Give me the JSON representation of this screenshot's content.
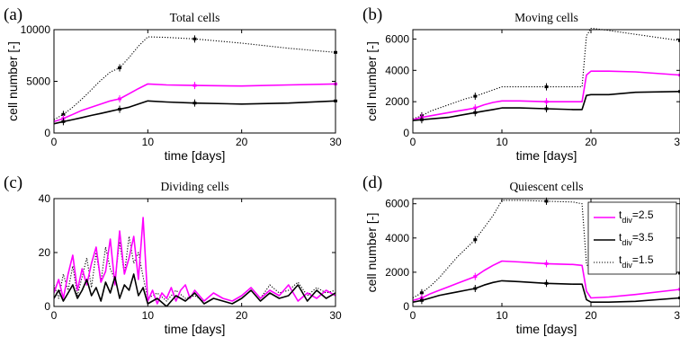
{
  "chart_data": [
    {
      "panel": "(a)",
      "type": "line",
      "title": "Total cells",
      "xlabel": "time [days]",
      "ylabel": "cell number [-]",
      "xlim": [
        0,
        30
      ],
      "ylim": [
        0,
        10000
      ],
      "xticks": [
        "0",
        "10",
        "20",
        "30"
      ],
      "yticks": [
        "0",
        "5000",
        "10000"
      ],
      "grid": false,
      "series": [
        {
          "color": "#000000",
          "dash": "dotted",
          "x": [
            0,
            1,
            2,
            3,
            4,
            5,
            6,
            7,
            8,
            9,
            10,
            12,
            15,
            20,
            25,
            30
          ],
          "y": [
            1300,
            1800,
            2500,
            3300,
            4200,
            5100,
            5900,
            6300,
            7300,
            8400,
            9300,
            9250,
            9100,
            8700,
            8200,
            7800
          ],
          "markers": [
            [
              1,
              1800
            ],
            [
              7,
              6300
            ],
            [
              15,
              9100
            ],
            [
              30,
              7800
            ]
          ]
        },
        {
          "color": "#ff00ff",
          "dash": "solid",
          "x": [
            0,
            1,
            2,
            3,
            4,
            5,
            6,
            7,
            8,
            9,
            10,
            12,
            15,
            20,
            25,
            30
          ],
          "y": [
            1100,
            1400,
            1800,
            2200,
            2500,
            2800,
            3100,
            3300,
            3800,
            4300,
            4750,
            4650,
            4600,
            4550,
            4650,
            4750
          ],
          "markers": [
            [
              1,
              1400
            ],
            [
              7,
              3300
            ],
            [
              15,
              4600
            ],
            [
              30,
              4750
            ]
          ]
        },
        {
          "color": "#000000",
          "dash": "solid",
          "x": [
            0,
            1,
            2,
            3,
            4,
            5,
            6,
            7,
            8,
            9,
            10,
            12,
            15,
            20,
            25,
            30
          ],
          "y": [
            900,
            1100,
            1300,
            1500,
            1700,
            1900,
            2100,
            2300,
            2500,
            2800,
            3100,
            3000,
            2900,
            2800,
            2900,
            3100
          ],
          "markers": [
            [
              1,
              1100
            ],
            [
              7,
              2300
            ],
            [
              15,
              2900
            ],
            [
              30,
              3100
            ]
          ]
        }
      ]
    },
    {
      "panel": "(b)",
      "type": "line",
      "title": "Moving cells",
      "xlabel": "time [days]",
      "ylabel": "cell number [-]",
      "xlim": [
        0,
        30
      ],
      "ylim": [
        0,
        6600
      ],
      "xticks": [
        "0",
        "10",
        "20",
        "30"
      ],
      "yticks": [
        "0",
        "2000",
        "4000",
        "6000"
      ],
      "grid": false,
      "series": [
        {
          "color": "#000000",
          "dash": "dotted",
          "x": [
            0,
            1,
            2,
            3,
            4,
            5,
            6,
            7,
            8,
            9,
            10,
            12,
            15,
            18,
            19,
            19.5,
            20,
            22,
            25,
            30
          ],
          "y": [
            900,
            1100,
            1400,
            1600,
            1800,
            2000,
            2200,
            2350,
            2550,
            2750,
            2950,
            2950,
            2950,
            2950,
            2950,
            6200,
            6700,
            6550,
            6300,
            5900
          ],
          "markers": [
            [
              1,
              1100
            ],
            [
              7,
              2350
            ],
            [
              15,
              2950
            ],
            [
              30,
              5900
            ]
          ]
        },
        {
          "color": "#ff00ff",
          "dash": "solid",
          "x": [
            0,
            1,
            2,
            3,
            4,
            5,
            6,
            7,
            8,
            9,
            10,
            12,
            15,
            18,
            19,
            19.5,
            20,
            22,
            25,
            30
          ],
          "y": [
            850,
            1000,
            1100,
            1200,
            1300,
            1400,
            1500,
            1600,
            1800,
            1950,
            2050,
            2050,
            2000,
            2000,
            2000,
            3700,
            3950,
            3950,
            3900,
            3700
          ],
          "markers": [
            [
              1,
              1000
            ],
            [
              7,
              1600
            ],
            [
              15,
              2000
            ],
            [
              30,
              3700
            ]
          ]
        },
        {
          "color": "#000000",
          "dash": "solid",
          "x": [
            0,
            1,
            2,
            3,
            4,
            5,
            6,
            7,
            8,
            9,
            10,
            12,
            15,
            18,
            19,
            19.5,
            20,
            22,
            25,
            30
          ],
          "y": [
            800,
            850,
            900,
            950,
            1000,
            1100,
            1200,
            1300,
            1400,
            1500,
            1600,
            1600,
            1550,
            1500,
            1500,
            2400,
            2450,
            2450,
            2600,
            2650
          ],
          "markers": [
            [
              1,
              850
            ],
            [
              7,
              1300
            ],
            [
              15,
              1550
            ],
            [
              30,
              2650
            ]
          ]
        }
      ]
    },
    {
      "panel": "(c)",
      "type": "line",
      "title": "Dividing cells",
      "xlabel": "time [days]",
      "ylabel": "",
      "xlim": [
        0,
        30
      ],
      "ylim": [
        0,
        40
      ],
      "xticks": [
        "0",
        "10",
        "20",
        "30"
      ],
      "yticks": [
        "0",
        "20",
        "40"
      ],
      "grid": false,
      "series": [
        {
          "color": "#000000",
          "dash": "dotted",
          "x": [
            0,
            0.5,
            1,
            1.5,
            2,
            2.5,
            3,
            3.5,
            4,
            4.5,
            5,
            5.5,
            6,
            6.5,
            7,
            7.5,
            8,
            8.5,
            9,
            9.5,
            10,
            11,
            12,
            13,
            14,
            15,
            16,
            17,
            18,
            19,
            20,
            21,
            22,
            23,
            24,
            25,
            26,
            27,
            28,
            29,
            30
          ],
          "y": [
            8,
            3,
            12,
            6,
            15,
            4,
            11,
            18,
            7,
            20,
            9,
            22,
            14,
            10,
            24,
            12,
            26,
            16,
            20,
            11,
            3,
            5,
            2,
            6,
            3,
            4,
            2,
            5,
            3,
            2,
            4,
            7,
            3,
            8,
            5,
            6,
            9,
            4,
            7,
            5,
            6
          ]
        },
        {
          "color": "#ff00ff",
          "dash": "solid",
          "x": [
            0,
            0.5,
            1,
            1.5,
            2,
            2.5,
            3,
            3.5,
            4,
            4.5,
            5,
            5.5,
            6,
            6.5,
            7,
            7.5,
            8,
            8.5,
            9,
            9.5,
            10,
            10.5,
            11,
            11.5,
            12,
            12.5,
            13,
            13.5,
            14,
            14.5,
            15,
            16,
            17,
            18,
            19,
            20,
            21,
            22,
            23,
            24,
            25,
            26,
            27,
            28,
            29,
            30
          ],
          "y": [
            5,
            10,
            3,
            12,
            19,
            6,
            14,
            8,
            16,
            22,
            9,
            13,
            25,
            8,
            28,
            12,
            18,
            26,
            10,
            33,
            2,
            6,
            1,
            5,
            3,
            7,
            2,
            6,
            8,
            3,
            6,
            2,
            5,
            3,
            2,
            4,
            7,
            3,
            6,
            4,
            8,
            2,
            5,
            3,
            6,
            4
          ]
        },
        {
          "color": "#000000",
          "dash": "solid",
          "x": [
            0,
            0.5,
            1,
            1.5,
            2,
            2.5,
            3,
            3.5,
            4,
            4.5,
            5,
            5.5,
            6,
            6.5,
            7,
            7.5,
            8,
            8.5,
            9,
            9.5,
            10,
            11,
            12,
            13,
            14,
            15,
            16,
            17,
            18,
            19,
            20,
            21,
            22,
            23,
            24,
            25,
            26,
            27,
            28,
            29,
            30
          ],
          "y": [
            3,
            6,
            2,
            5,
            8,
            3,
            6,
            10,
            4,
            7,
            2,
            9,
            5,
            11,
            3,
            8,
            6,
            12,
            4,
            7,
            1,
            3,
            0,
            4,
            2,
            5,
            1,
            3,
            2,
            1,
            3,
            6,
            2,
            5,
            3,
            4,
            8,
            2,
            6,
            3,
            5
          ]
        }
      ]
    },
    {
      "panel": "(d)",
      "type": "line",
      "title": "Quiescent cells",
      "xlabel": "time [days]",
      "ylabel": "cell number [-]",
      "xlim": [
        0,
        30
      ],
      "ylim": [
        0,
        6300
      ],
      "xticks": [
        "0",
        "10",
        "20",
        "30"
      ],
      "yticks": [
        "0",
        "2000",
        "4000",
        "6000"
      ],
      "grid": false,
      "legend": {
        "placement": "top-right",
        "entries": [
          {
            "main": "t",
            "sub": "div",
            "value": "=2.5",
            "color": "#ff00ff",
            "dash": "solid"
          },
          {
            "main": "t",
            "sub": "div",
            "value": "=3.5",
            "color": "#000000",
            "dash": "solid"
          },
          {
            "main": "t",
            "sub": "div",
            "value": "=1.5",
            "color": "#000000",
            "dash": "dotted"
          }
        ]
      },
      "series": [
        {
          "color": "#000000",
          "dash": "dotted",
          "x": [
            0,
            1,
            2,
            3,
            4,
            5,
            6,
            7,
            8,
            9,
            10,
            12,
            15,
            18,
            19,
            19.5,
            20,
            22,
            25,
            30
          ],
          "y": [
            500,
            800,
            1200,
            1700,
            2300,
            2900,
            3400,
            3900,
            4600,
            5300,
            6200,
            6200,
            6150,
            6100,
            6000,
            2500,
            1950,
            1950,
            1950,
            1950
          ],
          "markers": [
            [
              1,
              800
            ],
            [
              7,
              3900
            ],
            [
              15,
              6150
            ],
            [
              30,
              1950
            ]
          ]
        },
        {
          "color": "#ff00ff",
          "dash": "solid",
          "x": [
            0,
            1,
            2,
            3,
            4,
            5,
            6,
            7,
            8,
            9,
            10,
            12,
            15,
            18,
            19,
            19.5,
            20,
            22,
            25,
            30
          ],
          "y": [
            350,
            500,
            750,
            950,
            1150,
            1350,
            1550,
            1750,
            2100,
            2400,
            2650,
            2600,
            2500,
            2450,
            2400,
            900,
            500,
            550,
            700,
            1000
          ],
          "markers": [
            [
              1,
              500
            ],
            [
              7,
              1750
            ],
            [
              15,
              2500
            ],
            [
              30,
              1000
            ]
          ]
        },
        {
          "color": "#000000",
          "dash": "solid",
          "x": [
            0,
            1,
            2,
            3,
            4,
            5,
            6,
            7,
            8,
            9,
            10,
            12,
            15,
            18,
            19,
            19.5,
            20,
            22,
            25,
            30
          ],
          "y": [
            250,
            350,
            500,
            650,
            750,
            850,
            950,
            1050,
            1250,
            1400,
            1500,
            1450,
            1350,
            1300,
            1300,
            400,
            250,
            250,
            300,
            500
          ],
          "markers": [
            [
              1,
              350
            ],
            [
              7,
              1050
            ],
            [
              15,
              1350
            ],
            [
              30,
              500
            ]
          ]
        }
      ]
    }
  ]
}
